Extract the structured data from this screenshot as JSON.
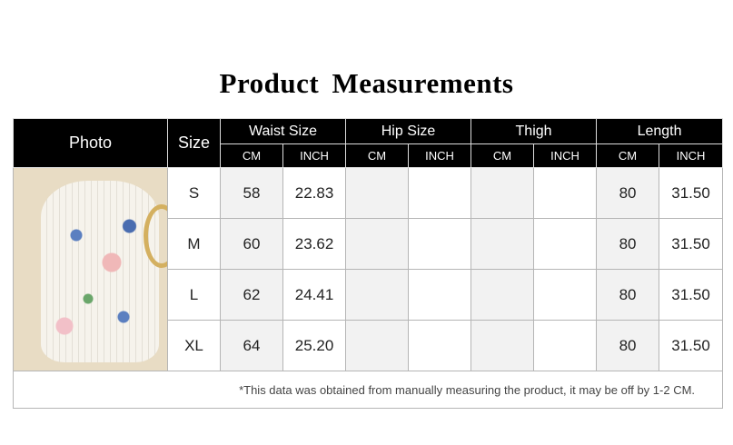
{
  "title": "Product Measurements",
  "headers": {
    "photo": "Photo",
    "size": "Size",
    "groups": [
      "Waist Size",
      "Hip Size",
      "Thigh",
      "Length"
    ],
    "sub": [
      "CM",
      "INCH",
      "CM",
      "INCH",
      "CM",
      "INCH",
      "CM",
      "INCH"
    ]
  },
  "rows": [
    {
      "size": "S",
      "waist_cm": "58",
      "waist_in": "22.83",
      "hip_cm": "",
      "hip_in": "",
      "thigh_cm": "",
      "thigh_in": "",
      "length_cm": "80",
      "length_in": "31.50"
    },
    {
      "size": "M",
      "waist_cm": "60",
      "waist_in": "23.62",
      "hip_cm": "",
      "hip_in": "",
      "thigh_cm": "",
      "thigh_in": "",
      "length_cm": "80",
      "length_in": "31.50"
    },
    {
      "size": "L",
      "waist_cm": "62",
      "waist_in": "24.41",
      "hip_cm": "",
      "hip_in": "",
      "thigh_cm": "",
      "thigh_in": "",
      "length_cm": "80",
      "length_in": "31.50"
    },
    {
      "size": "XL",
      "waist_cm": "64",
      "waist_in": "25.20",
      "hip_cm": "",
      "hip_in": "",
      "thigh_cm": "",
      "thigh_in": "",
      "length_cm": "80",
      "length_in": "31.50"
    }
  ],
  "footnote": "*This data was obtained from manually measuring the product, it may be off by 1-2 CM.",
  "colors": {
    "header_bg": "#000000",
    "cm_column_bg": "#f2f2f2",
    "border": "#b5b5b5"
  }
}
